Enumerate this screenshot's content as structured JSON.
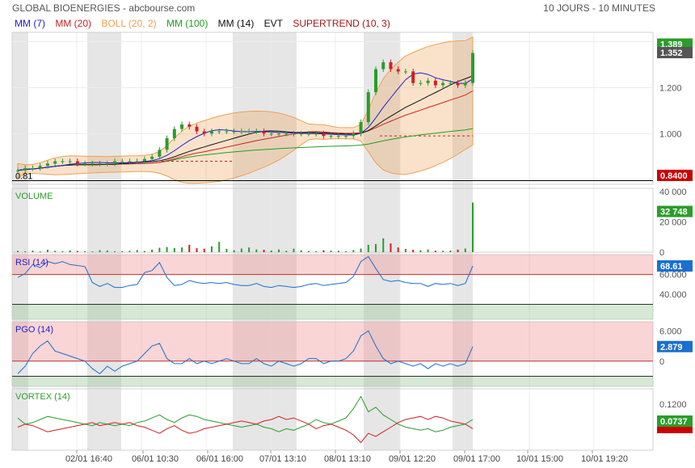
{
  "header": {
    "title": "GLOBAL BIOENERGIES - abcbourse.com",
    "period": "10 JOURS - 10 MINUTES"
  },
  "legend": [
    {
      "label": "MM (7)",
      "color": "#1f1fd0"
    },
    {
      "label": "MM (20)",
      "color": "#d02020"
    },
    {
      "label": "BOLL (20, 2)",
      "color": "#f0a050"
    },
    {
      "label": "MM (100)",
      "color": "#20a020"
    },
    {
      "label": "MM (14)",
      "color": "#111111"
    },
    {
      "label": "EVT",
      "color": "#111111"
    },
    {
      "label": "SUPERTREND (10, 3)",
      "color": "#a01818"
    }
  ],
  "chart_data": [
    {
      "type": "candlestick",
      "panel": "price",
      "yticks": [
        "1.400",
        "1.200",
        "1.000"
      ],
      "ylim": [
        0.78,
        1.44
      ],
      "min_label": "0.81",
      "last_badges": [
        {
          "text": "1.389",
          "color": "#2a9d2a"
        },
        {
          "text": "1.352",
          "color": "#555555"
        },
        {
          "text": "0.8400",
          "color": "#cc0000"
        }
      ],
      "series": [
        {
          "name": "Cours",
          "values": [
            0.84,
            0.85,
            0.85,
            0.86,
            0.87,
            0.88,
            0.88,
            0.88,
            0.87,
            0.87,
            0.87,
            0.87,
            0.87,
            0.88,
            0.88,
            0.88,
            0.88,
            0.89,
            0.9,
            0.93,
            0.98,
            1.02,
            1.04,
            1.03,
            1.01,
            1.0,
            1.01,
            1.01,
            1.01,
            1.01,
            1.01,
            1.01,
            1.01,
            1.0,
            1.0,
            1.0,
            1.0,
            1.0,
            1.0,
            1.0,
            1.0,
            0.99,
            0.99,
            0.99,
            0.99,
            1.0,
            1.05,
            1.18,
            1.28,
            1.31,
            1.28,
            1.27,
            1.27,
            1.22,
            1.22,
            1.23,
            1.21,
            1.22,
            1.22,
            1.21,
            1.22,
            1.35
          ]
        }
      ]
    },
    {
      "type": "bar",
      "panel": "volume",
      "title": "VOLUME",
      "yticks": [
        "40 000",
        "20 000",
        "0"
      ],
      "ylim": [
        0,
        40000
      ],
      "last_badge": {
        "text": "32 748",
        "color": "#2a9d2a"
      },
      "values": [
        900,
        600,
        1100,
        500,
        1600,
        900,
        700,
        1200,
        800,
        600,
        500,
        1300,
        1100,
        600,
        700,
        900,
        1400,
        800,
        1700,
        2900,
        3400,
        2700,
        3100,
        4900,
        2600,
        2300,
        3900,
        6800,
        2200,
        1300,
        2400,
        3100,
        1800,
        1600,
        1100,
        1800,
        900,
        2300,
        1200,
        800,
        700,
        1300,
        1000,
        900,
        600,
        1400,
        2400,
        4900,
        5400,
        9100,
        5800,
        3100,
        2200,
        1600,
        1300,
        1800,
        1000,
        900,
        1100,
        1700,
        2400,
        32748
      ]
    },
    {
      "type": "line",
      "panel": "rsi",
      "title": "RSI (14)",
      "yticks": [
        "60.000",
        "40.000"
      ],
      "ylim": [
        15,
        80
      ],
      "last_badge": {
        "text": "68.61",
        "color": "#1a6fd0"
      },
      "values": [
        57,
        61,
        70,
        67,
        73,
        71,
        73,
        70,
        69,
        68,
        52,
        48,
        51,
        47,
        47,
        49,
        50,
        62,
        64,
        72,
        57,
        49,
        50,
        54,
        52,
        51,
        52,
        51,
        52,
        50,
        49,
        49,
        51,
        48,
        47,
        49,
        48,
        47,
        48,
        50,
        51,
        49,
        50,
        51,
        52,
        58,
        73,
        78,
        66,
        55,
        53,
        54,
        52,
        51,
        51,
        48,
        51,
        50,
        51,
        49,
        51,
        68.61
      ]
    },
    {
      "type": "line",
      "panel": "pgo",
      "title": "PGO (14)",
      "yticks": [
        "6.000",
        "0"
      ],
      "ylim": [
        -5,
        7.8
      ],
      "last_badge": {
        "text": "2.879",
        "color": "#1a6fd0"
      },
      "values": [
        -2.5,
        -1.0,
        1.5,
        3.0,
        4.0,
        2.0,
        1.5,
        1.0,
        0.5,
        0,
        -1.5,
        -2.5,
        -1.0,
        -2.0,
        -1.0,
        -0.5,
        0,
        1.5,
        3.0,
        3.5,
        0.5,
        -0.5,
        -0.5,
        0.5,
        -0.5,
        0,
        -0.5,
        0,
        0.5,
        0,
        -0.5,
        -0.5,
        0.5,
        -0.5,
        -1.0,
        0,
        -0.5,
        -1.0,
        -0.5,
        0.5,
        0.5,
        -0.5,
        0,
        0,
        0.5,
        2.0,
        5.0,
        6.0,
        3.0,
        0.5,
        -0.5,
        0,
        -0.5,
        -1.0,
        -0.5,
        -1.5,
        -0.5,
        -1.0,
        -0.5,
        -1.0,
        -0.5,
        2.879
      ]
    },
    {
      "type": "line",
      "panel": "vortex",
      "title": "VORTEX (14)",
      "yticks": [
        "0.1200"
      ],
      "ylim": [
        0.85,
        1.25
      ],
      "last_badges": [
        {
          "text": "0.0737",
          "color": "#2a9d2a"
        },
        {
          "text": "0.9999",
          "color": "#cc0000"
        }
      ],
      "series": [
        {
          "name": "VI+",
          "color": "#2a9d2a",
          "values": [
            1.06,
            1.02,
            1.03,
            1.05,
            1.07,
            1.06,
            1.05,
            1.04,
            1.03,
            1.02,
            1.01,
            1.03,
            1.02,
            1.01,
            1.02,
            1.01,
            1.03,
            1.04,
            1.06,
            1.08,
            1.05,
            1.03,
            1.06,
            1.08,
            1.07,
            1.05,
            1.04,
            1.03,
            1.02,
            1.01,
            1.0,
            1.01,
            1.02,
            1.0,
            0.99,
            0.97,
            0.99,
            0.98,
            1.0,
            1.02,
            1.05,
            1.03,
            1.02,
            1.04,
            1.06,
            1.12,
            1.2,
            1.1,
            1.13,
            1.08,
            1.05,
            1.02,
            1.0,
            0.99,
            0.98,
            0.99,
            0.97,
            0.98,
            1.0,
            1.01,
            1.02,
            1.05
          ]
        },
        {
          "name": "VI-",
          "color": "#cc2222",
          "values": [
            1.0,
            1.02,
            1.01,
            0.99,
            0.97,
            0.98,
            0.99,
            1.0,
            1.01,
            1.02,
            1.03,
            1.01,
            1.02,
            1.03,
            1.02,
            1.03,
            1.01,
            1.0,
            0.98,
            0.96,
            0.99,
            1.01,
            0.98,
            0.96,
            0.97,
            0.99,
            1.0,
            1.01,
            1.02,
            1.03,
            1.04,
            1.03,
            1.02,
            1.04,
            1.05,
            1.07,
            1.05,
            1.06,
            1.04,
            1.02,
            0.99,
            1.01,
            1.02,
            1.0,
            0.98,
            0.95,
            0.9,
            0.96,
            0.94,
            0.97,
            1.0,
            1.03,
            1.05,
            1.06,
            1.07,
            1.05,
            1.07,
            1.06,
            1.04,
            1.03,
            1.02,
            0.99
          ]
        }
      ]
    }
  ],
  "xaxis": {
    "labels": [
      "02/01 16:40",
      "06/01 10:30",
      "06/01 16:00",
      "07/01 13:10",
      "08/01 13:10",
      "09/01 12:20",
      "09/01 17:00",
      "10/01 15:00",
      "10/01 19:20"
    ]
  }
}
